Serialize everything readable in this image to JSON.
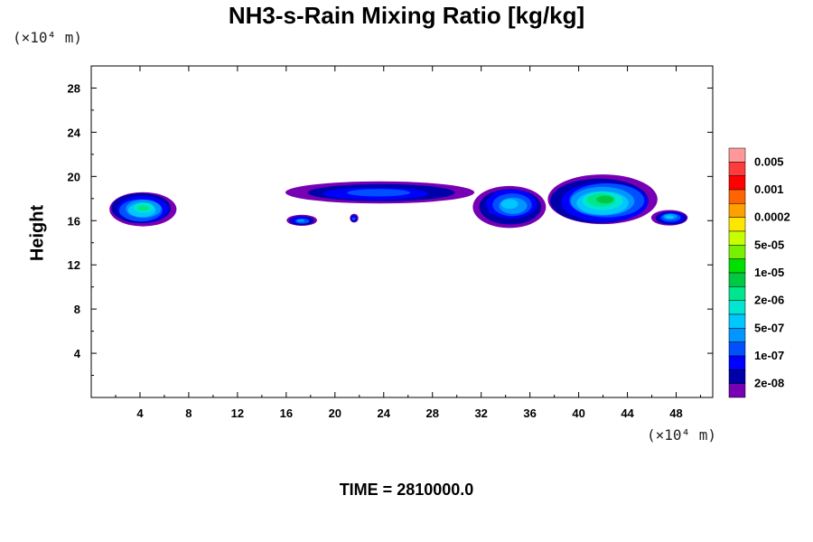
{
  "title": "NH3-s-Rain Mixing Ratio [kg/kg]",
  "y_unit": "(×10⁴ m)",
  "x_unit": "(×10⁴ m)",
  "ylabel": "Height",
  "footer": "TIME = 2810000.0",
  "chart_data": {
    "type": "heatmap",
    "title": "NH3-s-Rain Mixing Ratio [kg/kg]",
    "xlabel": "",
    "ylabel": "Height",
    "xlim": [
      0,
      51
    ],
    "ylim": [
      0,
      30
    ],
    "x_ticks": [
      4,
      8,
      12,
      16,
      20,
      24,
      28,
      32,
      36,
      40,
      44,
      48
    ],
    "y_ticks": [
      4,
      8,
      12,
      16,
      20,
      24,
      28
    ],
    "colorbar": {
      "labels": [
        "0.005",
        "0.001",
        "0.0002",
        "5e-05",
        "1e-05",
        "2e-06",
        "5e-07",
        "1e-07",
        "2e-08"
      ],
      "colors": [
        "#ff9999",
        "#ff3c3c",
        "#ff0000",
        "#ff6400",
        "#ffa000",
        "#ffe600",
        "#c8ff00",
        "#78f000",
        "#00e000",
        "#00c840",
        "#00e68c",
        "#00e6d2",
        "#00c8ff",
        "#0096ff",
        "#0050ff",
        "#0000ff",
        "#0000aa",
        "#7800b4"
      ]
    },
    "cells": [
      {
        "x": [
          1.5,
          7.0
        ],
        "y": [
          15.5,
          18.6
        ],
        "level": 5
      },
      {
        "x": [
          16.0,
          18.5
        ],
        "y": [
          15.5,
          16.5
        ],
        "level": 2
      },
      {
        "x": [
          21.2,
          21.9
        ],
        "y": [
          15.8,
          16.6
        ],
        "level": 1
      },
      {
        "x": [
          16.0,
          31.5
        ],
        "y": [
          17.5,
          19.5
        ],
        "level": 1
      },
      {
        "x": [
          31.5,
          37.5
        ],
        "y": [
          15.5,
          19.3
        ],
        "level": 3
      },
      {
        "x": [
          37.5,
          46.5
        ],
        "y": [
          15.5,
          20.0
        ],
        "level": 6
      },
      {
        "x": [
          46.0,
          49.0
        ],
        "y": [
          15.6,
          17.0
        ],
        "level": 3
      }
    ]
  }
}
